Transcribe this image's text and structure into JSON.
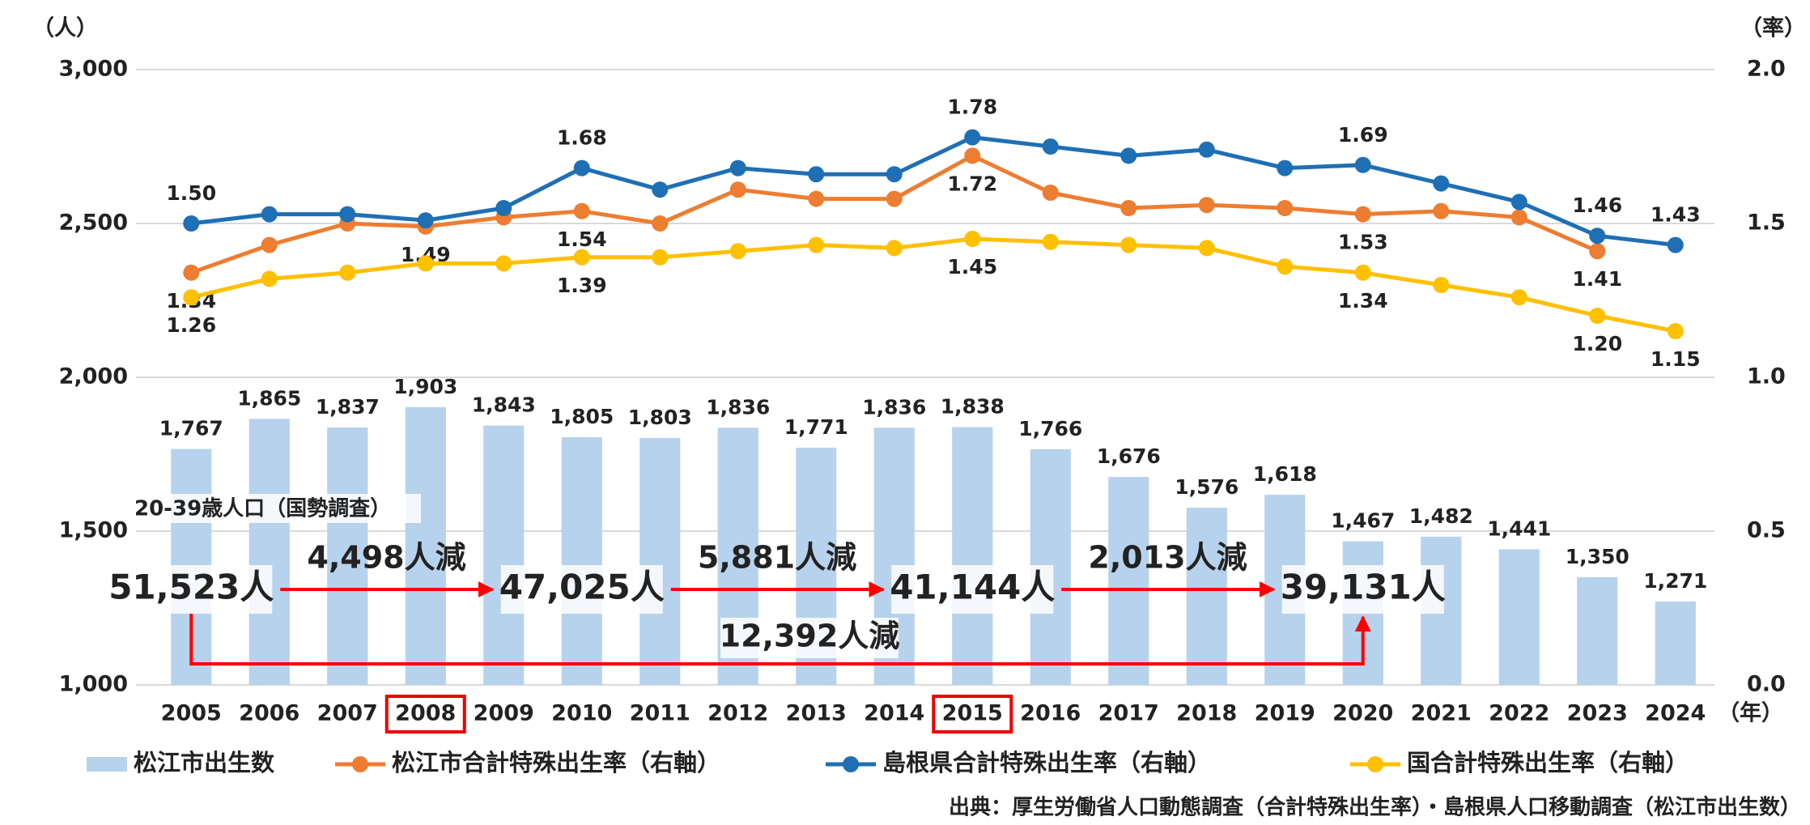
{
  "chart_data": {
    "type": "bar_line",
    "y_unit": "（人）",
    "y2_unit": "（率）",
    "x_unit": "（年）",
    "categories": [
      "2005",
      "2006",
      "2007",
      "2008",
      "2009",
      "2010",
      "2011",
      "2012",
      "2013",
      "2014",
      "2015",
      "2016",
      "2017",
      "2018",
      "2019",
      "2020",
      "2021",
      "2022",
      "2023",
      "2024"
    ],
    "highlighted": [
      "2008",
      "2015"
    ],
    "series": [
      {
        "name": "松江市出生数",
        "type": "bar",
        "color": "#b7d2ec",
        "values": [
          1767,
          1865,
          1837,
          1903,
          1843,
          1805,
          1803,
          1836,
          1771,
          1836,
          1838,
          1766,
          1676,
          1576,
          1618,
          1467,
          1482,
          1441,
          1350,
          1271
        ],
        "value_labels": [
          "1,767",
          "1,865",
          "1,837",
          "1,903",
          "1,843",
          "1,805",
          "1,803",
          "1,836",
          "1,771",
          "1,836",
          "1,838",
          "1,766",
          "1,676",
          "1,576",
          "1,618",
          "1,467",
          "1,482",
          "1,441",
          "1,350",
          "1,271"
        ]
      },
      {
        "name": "松江市合計特殊出生率（右軸）",
        "type": "line",
        "axis": "y2",
        "color": "#ed7d31",
        "label_side": "below",
        "values": [
          1.34,
          1.43,
          1.5,
          1.49,
          1.52,
          1.54,
          1.5,
          1.61,
          1.58,
          1.58,
          1.72,
          1.6,
          1.55,
          1.56,
          1.55,
          1.53,
          1.54,
          1.52,
          1.41,
          null
        ],
        "value_labels": [
          "1.34",
          null,
          null,
          "1.49",
          null,
          "1.54",
          null,
          null,
          null,
          null,
          "1.72",
          null,
          null,
          null,
          null,
          "1.53",
          null,
          null,
          "1.41",
          null
        ]
      },
      {
        "name": "島根県合計特殊出生率（右軸）",
        "type": "line",
        "axis": "y2",
        "color": "#1f6fb5",
        "label_side": "above",
        "values": [
          1.5,
          1.53,
          1.53,
          1.51,
          1.55,
          1.68,
          1.61,
          1.68,
          1.66,
          1.66,
          1.78,
          1.75,
          1.72,
          1.74,
          1.68,
          1.69,
          1.63,
          1.57,
          1.46,
          1.43
        ],
        "value_labels": [
          "1.50",
          null,
          null,
          null,
          null,
          "1.68",
          null,
          null,
          null,
          null,
          "1.78",
          null,
          null,
          null,
          null,
          "1.69",
          null,
          null,
          "1.46",
          "1.43"
        ]
      },
      {
        "name": "国合計特殊出生率（右軸）",
        "type": "line",
        "axis": "y2",
        "color": "#ffc000",
        "label_side": "below",
        "values": [
          1.26,
          1.32,
          1.34,
          1.37,
          1.37,
          1.39,
          1.39,
          1.41,
          1.43,
          1.42,
          1.45,
          1.44,
          1.43,
          1.42,
          1.36,
          1.34,
          1.3,
          1.26,
          1.2,
          1.15
        ],
        "value_labels": [
          "1.26",
          null,
          null,
          null,
          null,
          "1.39",
          null,
          null,
          null,
          null,
          "1.45",
          null,
          null,
          null,
          null,
          "1.34",
          null,
          null,
          "1.20",
          "1.15"
        ]
      }
    ],
    "ylim": [
      1000,
      3000
    ],
    "yticks": [
      {
        "value": 1000,
        "label": "1,000"
      },
      {
        "value": 1500,
        "label": "1,500"
      },
      {
        "value": 2000,
        "label": "2,000"
      },
      {
        "value": 2500,
        "label": "2,500"
      },
      {
        "value": 3000,
        "label": "3,000"
      }
    ],
    "y2lim": [
      0,
      2
    ],
    "y2ticks": [
      {
        "value": 0,
        "label": "0.0"
      },
      {
        "value": 0.5,
        "label": "0.5"
      },
      {
        "value": 1,
        "label": "1.0"
      },
      {
        "value": 1.5,
        "label": "1.5"
      },
      {
        "value": 2,
        "label": "2.0"
      }
    ],
    "grid": true,
    "population_title": "20-39歳人口（国勢調査）",
    "population": [
      "51,523人",
      "47,025人",
      "41,144人",
      "39,131人"
    ],
    "decreases": [
      "4,498人減",
      "5,881人減",
      "2,013人減"
    ],
    "total_decrease": "12,392人減",
    "source": "出典：厚生労働省人口動態調査（合計特殊出生率）・島根県人口移動調査（松江市出生数）"
  }
}
